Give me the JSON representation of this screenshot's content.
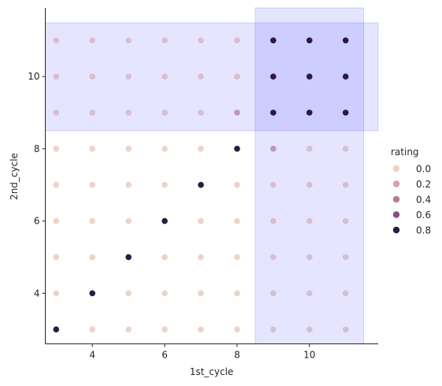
{
  "chart_data": {
    "type": "scatter",
    "title": "",
    "xlabel": "1st_cycle",
    "ylabel": "2nd_cycle",
    "xlim": [
      2.7,
      11.9
    ],
    "ylim": [
      2.6,
      11.9
    ],
    "xticks": [
      "4",
      "6",
      "8",
      "10"
    ],
    "yticks": [
      "4",
      "6",
      "8",
      "10"
    ],
    "grid": false,
    "legend": {
      "title": "rating",
      "placement": "right",
      "entries": [
        "0.0",
        "0.2",
        "0.4",
        "0.6",
        "0.8"
      ]
    },
    "x_range": [
      3,
      11
    ],
    "y_range": [
      3,
      11
    ],
    "hue_field": "rating",
    "highlight_x": [
      8.5,
      11.5
    ],
    "highlight_y": [
      8.5,
      11.5
    ],
    "points_dark": [
      [
        3,
        3
      ],
      [
        4,
        4
      ],
      [
        5,
        5
      ],
      [
        6,
        6
      ],
      [
        7,
        7
      ],
      [
        8,
        8
      ],
      [
        9,
        9
      ],
      [
        9,
        10
      ],
      [
        9,
        11
      ],
      [
        10,
        9
      ],
      [
        10,
        10
      ],
      [
        10,
        11
      ],
      [
        11,
        9
      ],
      [
        11,
        10
      ],
      [
        11,
        11
      ]
    ],
    "points_medium": [
      [
        8,
        9
      ],
      [
        9,
        8
      ]
    ],
    "points_low": [
      [
        3,
        9
      ],
      [
        3,
        10
      ],
      [
        3,
        11
      ],
      [
        4,
        9
      ],
      [
        4,
        10
      ],
      [
        4,
        11
      ],
      [
        5,
        9
      ],
      [
        5,
        10
      ],
      [
        5,
        11
      ],
      [
        6,
        9
      ],
      [
        6,
        10
      ],
      [
        6,
        11
      ],
      [
        7,
        9
      ],
      [
        7,
        10
      ],
      [
        7,
        11
      ],
      [
        8,
        10
      ],
      [
        8,
        11
      ],
      [
        9,
        3
      ],
      [
        9,
        4
      ],
      [
        9,
        5
      ],
      [
        9,
        6
      ],
      [
        9,
        7
      ],
      [
        10,
        3
      ],
      [
        10,
        4
      ],
      [
        10,
        5
      ],
      [
        10,
        6
      ],
      [
        10,
        7
      ],
      [
        10,
        8
      ],
      [
        11,
        3
      ],
      [
        11,
        4
      ],
      [
        11,
        5
      ],
      [
        11,
        6
      ],
      [
        11,
        7
      ],
      [
        11,
        8
      ]
    ],
    "colors": {
      "rating_0": "#ecd3ca",
      "rating_0_2": "#d6a3a9",
      "rating_0_4": "#b77b98",
      "rating_0_6": "#8a4f7d",
      "rating_0_8": "#2c1a45",
      "low": "#d7bed0",
      "medium": "#c098b4",
      "highlight_fill": "#0000ff",
      "axis": "#262626"
    }
  }
}
